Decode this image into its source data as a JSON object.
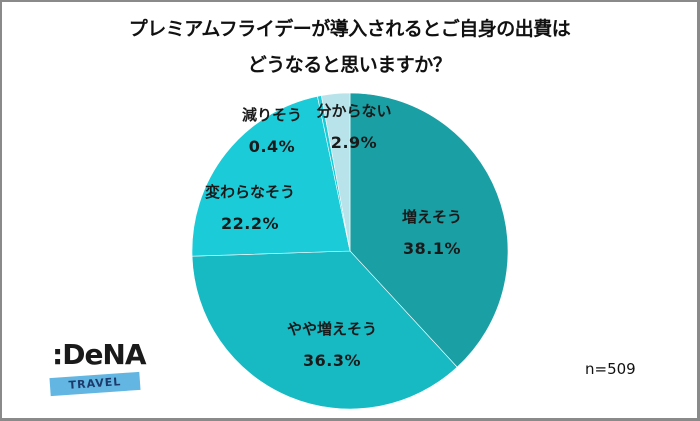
{
  "title": {
    "line1": "プレミアムフライデーが導入されるとご自身の出費は",
    "line2": "どうなると思いますか？"
  },
  "sample_size": "n=509",
  "logo": {
    "brand": ":DeNA",
    "sub": "TRAVEL",
    "band_color": "#63b6e2"
  },
  "chart_data": {
    "type": "pie",
    "title": "プレミアムフライデーが導入されるとご自身の出費はどうなると思いますか？",
    "start_angle": "12 o'clock, clockwise",
    "categories": [
      "増えそう",
      "やや増えそう",
      "変わらなそう",
      "減りそう",
      "分からない"
    ],
    "values": [
      38.1,
      36.3,
      22.2,
      0.4,
      2.9
    ],
    "value_labels": [
      "38.1%",
      "36.3%",
      "22.2%",
      "0.4%",
      "2.9%"
    ],
    "colors": [
      "#1a9fa4",
      "#17b9c3",
      "#1ccbd8",
      "#1ccbd8",
      "#b9e3ea"
    ],
    "note": "n=509",
    "legend": "none (data labels inside slices)"
  }
}
